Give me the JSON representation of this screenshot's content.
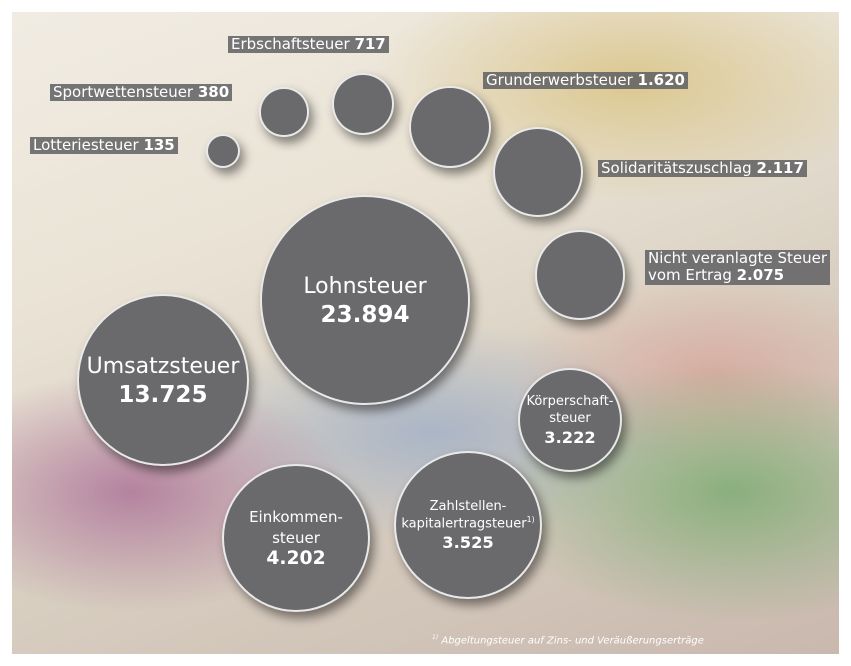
{
  "chart_data": {
    "type": "bubble",
    "categories": [
      "Lotteriesteuer",
      "Sportwettensteuer",
      "Erbschaftsteuer",
      "Grunderwerbsteuer",
      "Solidaritätszuschlag",
      "Nicht veranlagte Steuer\nvom Ertrag",
      "Lohnsteuer",
      "Umsatzsteuer",
      "Körperschaft-\nsteuer",
      "Einkommen-\nsteuer",
      "Zahlstellen-\nkapitalertragsteuer"
    ],
    "values": [
      135,
      380,
      717,
      1620,
      2117,
      2075,
      23894,
      13725,
      3222,
      4202,
      3525
    ],
    "value_labels": [
      "135",
      "380",
      "717",
      "1.620",
      "2.117",
      "2.075",
      "23.894",
      "13.725",
      "3.222",
      "4.202",
      "3.525"
    ],
    "color": "#6a6a6c",
    "footnote_marker": "1)",
    "footnote": "Abgeltungsteuer auf Zins- und Veräußerungserträge"
  }
}
